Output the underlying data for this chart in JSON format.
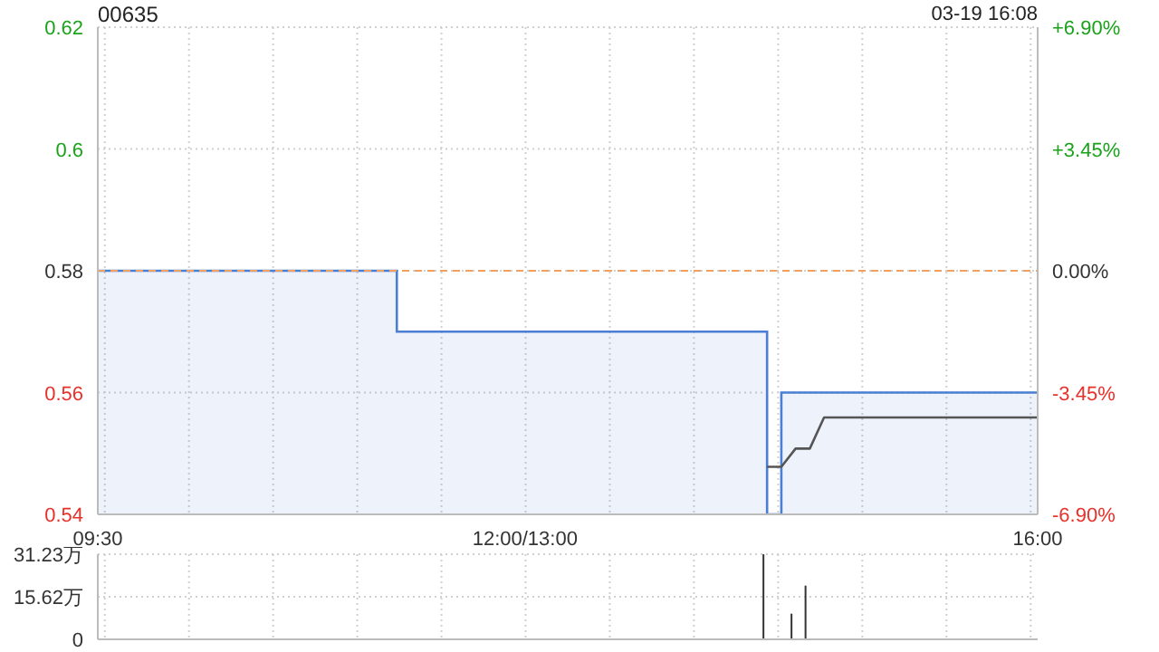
{
  "chart_data": [
    {
      "type": "line",
      "title": "00635",
      "annotations": [
        "03-19 16:08"
      ],
      "categories": [
        "09:30",
        null,
        null,
        null,
        null,
        null,
        null,
        null,
        null,
        null,
        null,
        null,
        null,
        null,
        null,
        null,
        null,
        null,
        null,
        null,
        null,
        null,
        null,
        null,
        null,
        null,
        null,
        null,
        null,
        null,
        "12:00/13:00",
        null,
        null,
        null,
        null,
        null,
        null,
        null,
        null,
        null,
        null,
        null,
        null,
        null,
        null,
        null,
        null,
        null,
        null,
        null,
        null,
        null,
        null,
        null,
        null,
        null,
        null,
        null,
        null,
        null,
        null,
        null,
        null,
        null,
        null,
        null,
        "16:00"
      ],
      "ylim": [
        0.54,
        0.62
      ],
      "yticks": [
        0.54,
        0.56,
        0.58,
        0.6,
        0.62
      ],
      "y2lim": [
        -6.9,
        6.9
      ],
      "y2ticks": [
        {
          "value": 6.9,
          "label": "+6.90%"
        },
        {
          "value": 3.45,
          "label": "+3.45%"
        },
        {
          "value": 0,
          "label": "0.00%"
        },
        {
          "value": -3.45,
          "label": "-3.45%"
        },
        {
          "value": -6.9,
          "label": "-6.90%"
        }
      ],
      "grid": true,
      "ref_lines": [
        {
          "axis": "y",
          "value": 0.58,
          "color": "#f0a060",
          "line_style": "dashed"
        }
      ],
      "series": [
        {
          "type": "area",
          "color": "#4a7fd4",
          "values": [
            0.58,
            0.58,
            0.58,
            0.58,
            0.58,
            0.58,
            0.58,
            0.58,
            0.58,
            0.58,
            0.58,
            0.58,
            0.58,
            0.58,
            0.58,
            0.58,
            0.58,
            0.58,
            0.58,
            0.58,
            0.58,
            0.57,
            0.57,
            0.57,
            0.57,
            0.57,
            0.57,
            0.57,
            0.57,
            0.57,
            0.57,
            0.57,
            0.57,
            0.57,
            0.57,
            0.57,
            0.57,
            0.57,
            0.57,
            0.57,
            0.57,
            0.57,
            0.57,
            0.57,
            0.57,
            0.57,
            0.57,
            0.54,
            0.56,
            0.56,
            0.56,
            0.56,
            0.56,
            0.56,
            0.56,
            0.56,
            0.56,
            0.56,
            0.56,
            0.56,
            0.56,
            0.56,
            0.56,
            0.56,
            0.56,
            0.56,
            0.56
          ]
        },
        {
          "color": "#555555",
          "values": [
            null,
            null,
            null,
            null,
            null,
            null,
            null,
            null,
            null,
            null,
            null,
            null,
            null,
            null,
            null,
            null,
            null,
            null,
            null,
            null,
            null,
            null,
            null,
            null,
            null,
            null,
            null,
            null,
            null,
            null,
            null,
            null,
            null,
            null,
            null,
            null,
            null,
            null,
            null,
            null,
            null,
            null,
            null,
            null,
            null,
            null,
            null,
            0.5478,
            0.5478,
            0.5508,
            0.5508,
            0.5559,
            0.5559,
            0.5559,
            0.5559,
            0.5559,
            0.5559,
            0.5559,
            0.5559,
            0.5559,
            0.5559,
            0.5559,
            0.5559,
            0.5559,
            0.5559,
            0.5559,
            0.5559
          ]
        }
      ]
    },
    {
      "type": "bar",
      "categories": [
        null,
        null,
        null,
        null,
        null,
        null,
        null,
        null,
        null,
        null,
        null,
        null,
        null,
        null,
        null,
        null,
        null,
        null,
        null,
        null,
        null,
        null,
        null,
        null,
        null,
        null,
        null,
        null,
        null,
        null,
        null,
        null,
        null,
        null,
        null,
        null,
        null,
        null,
        null,
        null,
        null,
        null,
        null,
        null,
        null,
        null,
        null,
        null,
        null,
        null,
        null,
        null,
        null,
        null,
        null,
        null,
        null,
        null,
        null,
        null,
        null,
        null,
        null,
        null,
        null,
        null,
        null
      ],
      "ylim": [
        0,
        31.23
      ],
      "yticks": [
        0,
        {
          "value": 15.62,
          "label": "15.62万"
        },
        {
          "value": 31.23,
          "label": "31.23万"
        }
      ],
      "grid": true,
      "tick_labels": "y",
      "series": [
        {
          "color": "#333333",
          "values": [
            null,
            null,
            null,
            null,
            null,
            null,
            null,
            null,
            null,
            null,
            null,
            null,
            null,
            null,
            null,
            null,
            null,
            null,
            null,
            null,
            null,
            null,
            null,
            null,
            null,
            null,
            null,
            null,
            null,
            null,
            null,
            null,
            null,
            null,
            null,
            null,
            null,
            null,
            null,
            null,
            null,
            null,
            null,
            null,
            null,
            null,
            null,
            31.2,
            null,
            9.4,
            19.7,
            null,
            null,
            null,
            null,
            null,
            null,
            null,
            null,
            null,
            null,
            null,
            null,
            null,
            null,
            null,
            null
          ]
        }
      ]
    }
  ]
}
